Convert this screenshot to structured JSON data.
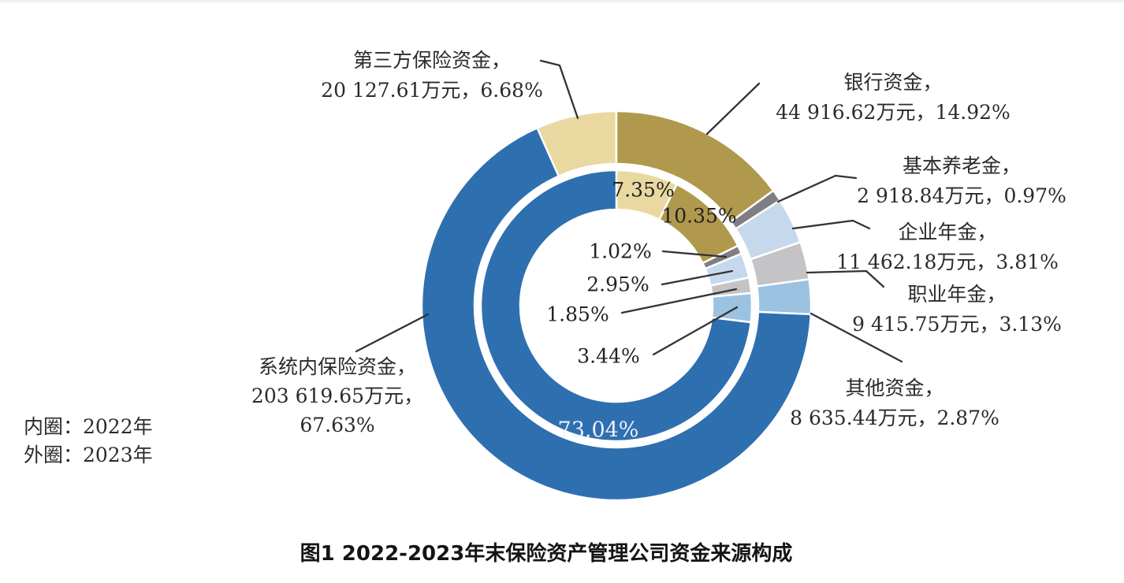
{
  "chart_data": {
    "type": "pie",
    "subtype": "nested-donut",
    "title": "图1 2022-2023年末保险资产管理公司资金来源构成",
    "legend": {
      "inner": "内圈：2022年",
      "outer": "外圈：2023年",
      "position": "left"
    },
    "unit": "万元",
    "categories": [
      "第三方保险资金",
      "银行资金",
      "基本养老金",
      "企业年金",
      "职业年金",
      "其他资金",
      "系统内保险资金"
    ],
    "colors": [
      "#e9d8a0",
      "#b0994d",
      "#7f7f83",
      "#c6d9ec",
      "#c4c4c6",
      "#9cc2e2",
      "#2e6fb0"
    ],
    "series": [
      {
        "name": "2022年",
        "ring": "inner",
        "values_pct": [
          7.35,
          10.35,
          1.02,
          2.95,
          1.85,
          3.44,
          73.04
        ]
      },
      {
        "name": "2023年",
        "ring": "outer",
        "values_pct": [
          6.68,
          14.92,
          0.97,
          3.81,
          3.13,
          2.87,
          67.63
        ],
        "amounts": [
          "20 127.61",
          "44 916.62",
          "2 918.84",
          "11 462.18",
          "9 415.75",
          "8 635.44",
          "203 619.65"
        ]
      }
    ],
    "callouts": [
      {
        "line1": "第三方保险资金，",
        "line2": "20 127.61万元，6.68%"
      },
      {
        "line1": "银行资金，",
        "line2": "44 916.62万元，14.92%"
      },
      {
        "line1": "基本养老金，",
        "line2": "2 918.84万元，0.97%"
      },
      {
        "line1": "企业年金，",
        "line2": "11 462.18万元，3.81%"
      },
      {
        "line1": "职业年金，",
        "line2": "9 415.75万元，3.13%"
      },
      {
        "line1": "其他资金，",
        "line2": "8 635.44万元，2.87%"
      },
      {
        "line1": "系统内保险资金，",
        "line2": "203 619.65万元，",
        "line3": "67.63%"
      }
    ]
  }
}
